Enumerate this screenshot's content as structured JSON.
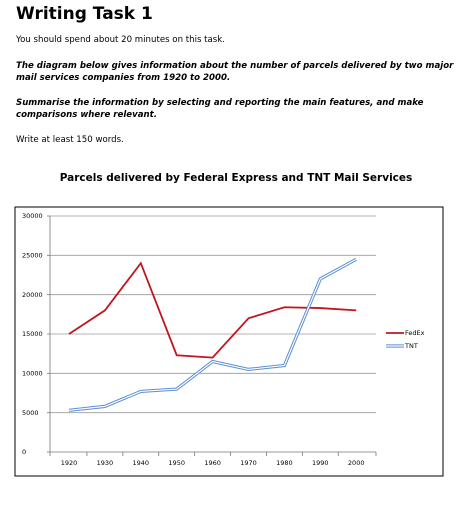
{
  "header": {
    "title": "Writing Task 1",
    "time_note": "You should spend about 20 minutes on this task.",
    "description": "The diagram below gives information about the number of parcels delivered by two major mail services companies from 1920 to 2000.",
    "instruction": "Summarise the information by selecting and reporting the main features, and make comparisons where relevant.",
    "word_note": "Write at least 150 words."
  },
  "chart_data": {
    "type": "line",
    "title": "Parcels delivered by Federal Express and TNT Mail Services",
    "xlabel": "",
    "ylabel": "",
    "categories": [
      "1920",
      "1930",
      "1940",
      "1950",
      "1960",
      "1970",
      "1980",
      "1990",
      "2000"
    ],
    "ylim": [
      0,
      30000
    ],
    "yticks": [
      0,
      5000,
      10000,
      15000,
      20000,
      25000,
      30000
    ],
    "grid": true,
    "legend_position": "right",
    "series": [
      {
        "name": "FedEx",
        "color": "#c0161f",
        "style": "solid",
        "values": [
          15000,
          18000,
          24000,
          12300,
          12000,
          17000,
          18400,
          18300,
          18000
        ]
      },
      {
        "name": "TNT",
        "color": "#5b8fd6",
        "style": "double",
        "values": [
          5300,
          5800,
          7700,
          8000,
          11500,
          10500,
          11000,
          22000,
          24500
        ]
      }
    ]
  }
}
